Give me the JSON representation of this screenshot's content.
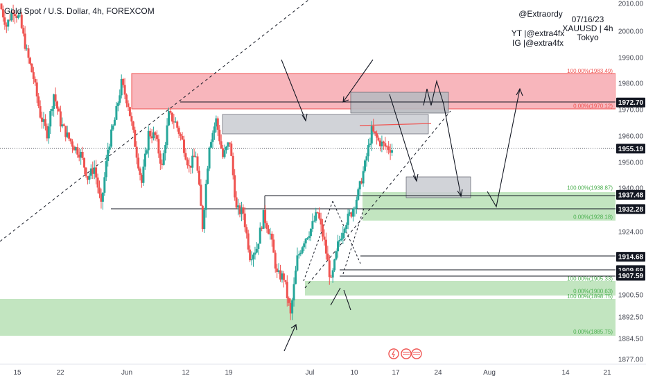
{
  "header": {
    "title": "Gold Spot / U.S. Dollar, 4h, FOREXCOM"
  },
  "watermark": {
    "handle": "@Extraordy",
    "date": "07/16/23",
    "symbol": "XAUUSD | 4h",
    "session": "Tokyo",
    "yt": "YT |@extra4fx",
    "ig": "IG |@extra4fx"
  },
  "colors": {
    "up": "#26a69a",
    "down": "#ef5350",
    "resistance_zone": "#f7a9b0",
    "support_zone": "#b7e1b5",
    "gray_box": "#d1d4dc"
  },
  "chart_data": {
    "type": "candlestick",
    "ylim": [
      1875.0,
      2010.0
    ],
    "y_ticks": [
      {
        "value": 1877.0,
        "label": "1877.00"
      },
      {
        "value": 1884.5,
        "label": "1884.50"
      },
      {
        "value": 1892.5,
        "label": "1892.50"
      },
      {
        "value": 1900.5,
        "label": "1900.50"
      },
      {
        "value": 1924.0,
        "label": "1924.00"
      },
      {
        "value": 1940.0,
        "label": "1940.00"
      },
      {
        "value": 1950.0,
        "label": "1950.00"
      },
      {
        "value": 1960.0,
        "label": "1960.00"
      },
      {
        "value": 1970.0,
        "label": "1970.00"
      },
      {
        "value": 1980.0,
        "label": "1980.00"
      },
      {
        "value": 1990.0,
        "label": "1990.00"
      },
      {
        "value": 2000.0,
        "label": "2000.00"
      },
      {
        "value": 2010.0,
        "label": "2010.00"
      }
    ],
    "x_ticks": [
      "15",
      "22",
      "Jun",
      "12",
      "19",
      "Jul",
      "10",
      "17",
      "24",
      "Aug",
      "14",
      "21"
    ],
    "price_tags": [
      {
        "value": 1972.7,
        "label": "1972.70"
      },
      {
        "value": 1955.19,
        "label": "1955.19"
      },
      {
        "value": 1937.48,
        "label": "1937.48"
      },
      {
        "value": 1932.28,
        "label": "1932.28"
      },
      {
        "value": 1914.68,
        "label": "1914.68"
      },
      {
        "value": 1909.69,
        "label": "1909.69"
      },
      {
        "value": 1907.59,
        "label": "1907.59"
      }
    ],
    "fib_labels": [
      {
        "label": "100.00%(1983.49)",
        "value": 1983.49,
        "color": "#ef5350"
      },
      {
        "label": "0.00%(1970.12)",
        "value": 1970.12,
        "color": "#ef5350"
      },
      {
        "label": "100.00%(1938.87)",
        "value": 1938.87,
        "color": "#4caf50"
      },
      {
        "label": "0.00%(1928.18)",
        "value": 1928.18,
        "color": "#4caf50"
      },
      {
        "label": "100.00%(1905.33)",
        "value": 1905.33,
        "color": "#4caf50"
      },
      {
        "label": "0.00%(1900.63)",
        "value": 1900.63,
        "color": "#4caf50"
      },
      {
        "label": "100.00%(1898.75)",
        "value": 1898.75,
        "color": "#4caf50"
      },
      {
        "label": "0.00%(1885.75)",
        "value": 1885.75,
        "color": "#4caf50"
      }
    ],
    "price_path": [
      {
        "x": "May 11",
        "y": 2010
      },
      {
        "x": "May 12",
        "y": 2002
      },
      {
        "x": "May 13",
        "y": 2008
      },
      {
        "x": "May 15",
        "y": 2004
      },
      {
        "x": "May 16",
        "y": 1992
      },
      {
        "x": "May 17",
        "y": 1982
      },
      {
        "x": "May 18",
        "y": 1968
      },
      {
        "x": "May 19",
        "y": 1961
      },
      {
        "x": "May 20",
        "y": 1976
      },
      {
        "x": "May 22",
        "y": 1965
      },
      {
        "x": "May 23",
        "y": 1960
      },
      {
        "x": "May 24",
        "y": 1956
      },
      {
        "x": "May 26",
        "y": 1953
      },
      {
        "x": "May 27",
        "y": 1944
      },
      {
        "x": "May 28",
        "y": 1948
      },
      {
        "x": "May 29",
        "y": 1933
      },
      {
        "x": "May 30",
        "y": 1955
      },
      {
        "x": "May 31",
        "y": 1966
      },
      {
        "x": "Jun 1",
        "y": 1980
      },
      {
        "x": "Jun 2",
        "y": 1972
      },
      {
        "x": "Jun 3",
        "y": 1957
      },
      {
        "x": "Jun 5",
        "y": 1942
      },
      {
        "x": "Jun 6",
        "y": 1961
      },
      {
        "x": "Jun 7",
        "y": 1960
      },
      {
        "x": "Jun 8",
        "y": 1948
      },
      {
        "x": "Jun 9",
        "y": 1968
      },
      {
        "x": "Jun 12",
        "y": 1965
      },
      {
        "x": "Jun 13",
        "y": 1958
      },
      {
        "x": "Jun 14",
        "y": 1948
      },
      {
        "x": "Jun 15",
        "y": 1953
      },
      {
        "x": "Jun 16",
        "y": 1926
      },
      {
        "x": "Jun 17",
        "y": 1957
      },
      {
        "x": "Jun 18",
        "y": 1966
      },
      {
        "x": "Jun 19",
        "y": 1952
      },
      {
        "x": "Jun 20",
        "y": 1958
      },
      {
        "x": "Jun 21",
        "y": 1932
      },
      {
        "x": "Jun 22",
        "y": 1931
      },
      {
        "x": "Jun 23",
        "y": 1915
      },
      {
        "x": "Jun 24",
        "y": 1918
      },
      {
        "x": "Jun 26",
        "y": 1930
      },
      {
        "x": "Jun 27",
        "y": 1923
      },
      {
        "x": "Jun 28",
        "y": 1908
      },
      {
        "x": "Jun 29",
        "y": 1907
      },
      {
        "x": "Jun 30",
        "y": 1893
      },
      {
        "x": "Jul 1",
        "y": 1914
      },
      {
        "x": "Jul 3",
        "y": 1921
      },
      {
        "x": "Jul 4",
        "y": 1925
      },
      {
        "x": "Jul 5",
        "y": 1931
      },
      {
        "x": "Jul 6",
        "y": 1920
      },
      {
        "x": "Jul 7",
        "y": 1905
      },
      {
        "x": "Jul 8",
        "y": 1919
      },
      {
        "x": "Jul 9",
        "y": 1927
      },
      {
        "x": "Jul 10",
        "y": 1931
      },
      {
        "x": "Jul 11",
        "y": 1938
      },
      {
        "x": "Jul 12",
        "y": 1949
      },
      {
        "x": "Jul 13",
        "y": 1962
      },
      {
        "x": "Jul 14",
        "y": 1958
      },
      {
        "x": "Jul 15",
        "y": 1956
      },
      {
        "x": "Jul 16",
        "y": 1955
      }
    ]
  }
}
